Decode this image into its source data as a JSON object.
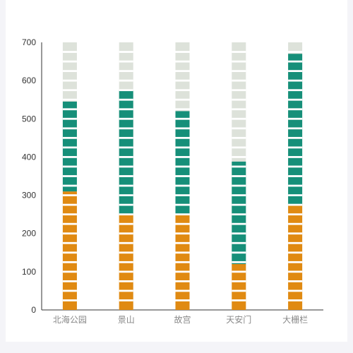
{
  "colors": {
    "background": "#ffffff",
    "axis": "#333333",
    "bottom_series": "#e08a12",
    "middle_series": "#168f79",
    "track": "#dde2da",
    "divider": "#ffffff"
  },
  "chart_data": {
    "type": "bar",
    "stacked": true,
    "style": "pictorial-segmented",
    "categories": [
      "北海公园",
      "景山",
      "故宫",
      "天安门",
      "大栅栏"
    ],
    "ylim": [
      0,
      700
    ],
    "yticks": [
      0,
      100,
      200,
      300,
      400,
      500,
      600,
      700
    ],
    "track_max": 700,
    "series": [
      {
        "values": [
          310,
          250,
          250,
          120,
          275
        ],
        "color": "#e08a12"
      },
      {
        "values": [
          235,
          325,
          270,
          268,
          395
        ],
        "color": "#168f79"
      }
    ],
    "grid": false,
    "legend": "none"
  }
}
